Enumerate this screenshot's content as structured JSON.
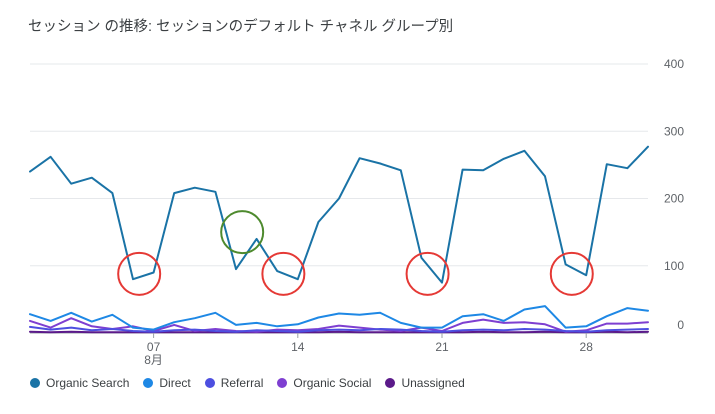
{
  "chart_data": {
    "type": "line",
    "title": "セッション の推移: セッションのデフォルト チャネル グループ別",
    "xlabel": "",
    "ylabel": "",
    "ylim": [
      0,
      400
    ],
    "y_ticks": [
      0,
      100,
      200,
      300,
      400
    ],
    "x_tick_labels": [
      {
        "day": 7,
        "label": "07",
        "sublabel": "8月"
      },
      {
        "day": 14,
        "label": "14",
        "sublabel": ""
      },
      {
        "day": 21,
        "label": "21",
        "sublabel": ""
      },
      {
        "day": 28,
        "label": "28",
        "sublabel": ""
      }
    ],
    "x": [
      1,
      2,
      3,
      4,
      5,
      6,
      7,
      8,
      9,
      10,
      11,
      12,
      13,
      14,
      15,
      16,
      17,
      18,
      19,
      20,
      21,
      22,
      23,
      24,
      25,
      26,
      27,
      28,
      29,
      30,
      31
    ],
    "grid": true,
    "legend_position": "bottom-left",
    "series": [
      {
        "name": "Organic Search",
        "color": "#1a73a6",
        "values": [
          240,
          262,
          222,
          231,
          208,
          80,
          90,
          208,
          216,
          210,
          95,
          140,
          92,
          80,
          165,
          200,
          260,
          252,
          242,
          112,
          75,
          243,
          242,
          259,
          271,
          233,
          102,
          86,
          251,
          245,
          277
        ]
      },
      {
        "name": "Direct",
        "color": "#1e88e5",
        "values": [
          28,
          18,
          30,
          17,
          27,
          8,
          5,
          16,
          22,
          30,
          12,
          15,
          10,
          13,
          23,
          29,
          27,
          30,
          15,
          8,
          8,
          25,
          28,
          18,
          35,
          40,
          8,
          10,
          25,
          37,
          33
        ]
      },
      {
        "name": "Referral",
        "color": "#4d4fe0",
        "values": [
          9,
          5,
          8,
          4,
          6,
          3,
          2,
          4,
          5,
          3,
          2,
          4,
          3,
          2,
          4,
          5,
          4,
          6,
          5,
          3,
          2,
          4,
          5,
          4,
          6,
          5,
          3,
          2,
          4,
          5,
          6
        ]
      },
      {
        "name": "Organic Social",
        "color": "#7e3fd1",
        "values": [
          18,
          8,
          22,
          10,
          6,
          10,
          3,
          12,
          3,
          6,
          3,
          2,
          5,
          4,
          6,
          11,
          8,
          5,
          3,
          8,
          3,
          15,
          20,
          15,
          16,
          13,
          2,
          4,
          14,
          14,
          16
        ]
      },
      {
        "name": "Unassigned",
        "color": "#5b1a8a",
        "values": [
          2,
          1,
          2,
          1,
          1,
          1,
          1,
          1,
          1,
          1,
          1,
          1,
          1,
          1,
          1,
          2,
          1,
          1,
          1,
          1,
          1,
          1,
          2,
          1,
          1,
          2,
          1,
          1,
          2,
          1,
          2
        ]
      }
    ],
    "annotations": [
      {
        "shape": "circle",
        "color": "#e53935",
        "day": 6.3,
        "value": 88
      },
      {
        "shape": "circle",
        "color": "#e53935",
        "day": 13.3,
        "value": 88
      },
      {
        "shape": "circle",
        "color": "#e53935",
        "day": 20.3,
        "value": 88
      },
      {
        "shape": "circle",
        "color": "#e53935",
        "day": 27.3,
        "value": 88
      },
      {
        "shape": "circle",
        "color": "#4e8a2e",
        "day": 11.3,
        "value": 150
      }
    ]
  }
}
